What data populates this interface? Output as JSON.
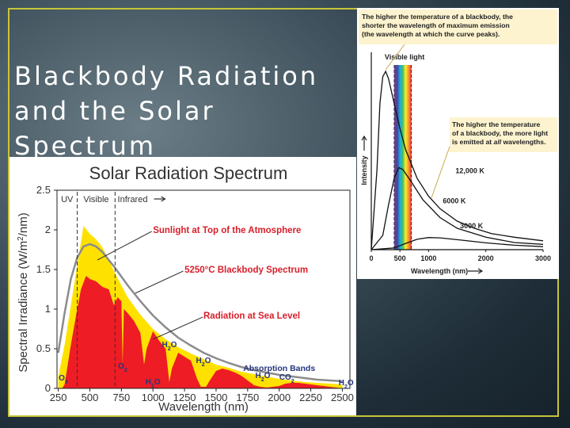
{
  "slide": {
    "title_line1": "Blackbody Radiation",
    "title_line2": "and the Solar Spectrum"
  },
  "solar_chart": {
    "title": "Solar Radiation Spectrum",
    "xlabel": "Wavelength (nm)",
    "ylabel_main": "Spectral Irradiance (W/m",
    "ylabel_sup": "2",
    "ylabel_tail": "/nm)",
    "region_uv": "UV",
    "region_visible": "Visible",
    "region_infrared": "Infrared",
    "label_top_atmos": "Sunlight at Top of the Atmosphere",
    "label_blackbody": "5250°C Blackbody Spectrum",
    "label_sea_level": "Radiation at Sea Level",
    "label_absorption": "Absorption Bands",
    "gases": [
      {
        "text": "O",
        "sub": "3",
        "x": 290,
        "y": 0.1
      },
      {
        "text": "O",
        "sub": "2",
        "x": 760,
        "y": 0.25
      },
      {
        "text": "H",
        "sub": "2",
        "tail": "O",
        "x": 1000,
        "y": 0.05
      },
      {
        "text": "H",
        "sub": "2",
        "tail": "O",
        "x": 1130,
        "y": 0.52
      },
      {
        "text": "H",
        "sub": "2",
        "tail": "O",
        "x": 1400,
        "y": 0.32
      },
      {
        "text": "H",
        "sub": "2",
        "tail": "O",
        "x": 1870,
        "y": 0.13
      },
      {
        "text": "CO",
        "sub": "2",
        "x": 2060,
        "y": 0.11
      },
      {
        "text": "H",
        "sub": "2",
        "tail": "O",
        "x": 2530,
        "y": 0.04
      }
    ],
    "colors": {
      "top": "#ffe100",
      "sea": "#ee1c25",
      "blackbody": "#8c8c8c",
      "label_red": "#d81e2a",
      "label_blue": "#25357c"
    }
  },
  "chart_data": [
    {
      "type": "area",
      "title": "Solar Radiation Spectrum",
      "xlabel": "Wavelength (nm)",
      "ylabel": "Spectral Irradiance (W/m2/nm)",
      "xlim": [
        240,
        2560
      ],
      "ylim": [
        0,
        2.5
      ],
      "x_ticks": [
        250,
        500,
        750,
        1000,
        1250,
        1500,
        1750,
        2000,
        2250,
        2500
      ],
      "y_ticks": [
        0,
        0.5,
        1,
        1.5,
        2,
        2.5
      ],
      "series": [
        {
          "name": "Sunlight at Top of the Atmosphere",
          "x": [
            250,
            300,
            350,
            400,
            450,
            500,
            550,
            600,
            650,
            700,
            750,
            800,
            900,
            1000,
            1100,
            1200,
            1300,
            1400,
            1500,
            1600,
            1700,
            1800,
            1900,
            2000,
            2100,
            2200,
            2300,
            2400,
            2500
          ],
          "y": [
            0.15,
            0.55,
            1.05,
            1.55,
            2.05,
            1.95,
            1.88,
            1.78,
            1.62,
            1.45,
            1.3,
            1.15,
            0.93,
            0.75,
            0.62,
            0.52,
            0.44,
            0.37,
            0.3,
            0.26,
            0.21,
            0.18,
            0.15,
            0.12,
            0.1,
            0.08,
            0.07,
            0.06,
            0.05
          ]
        },
        {
          "name": "5250°C Blackbody Spectrum",
          "x": [
            250,
            300,
            350,
            400,
            450,
            500,
            550,
            600,
            650,
            700,
            750,
            800,
            900,
            1000,
            1100,
            1200,
            1300,
            1400,
            1500,
            1600,
            1700,
            1800,
            1900,
            2000,
            2100,
            2200,
            2300,
            2400,
            2500
          ],
          "y": [
            0.45,
            0.95,
            1.38,
            1.65,
            1.79,
            1.82,
            1.79,
            1.72,
            1.62,
            1.52,
            1.41,
            1.3,
            1.1,
            0.92,
            0.77,
            0.64,
            0.54,
            0.45,
            0.38,
            0.32,
            0.27,
            0.23,
            0.2,
            0.17,
            0.15,
            0.13,
            0.11,
            0.1,
            0.09
          ]
        },
        {
          "name": "Radiation at Sea Level",
          "x": [
            250,
            280,
            300,
            320,
            350,
            400,
            430,
            470,
            500,
            550,
            600,
            650,
            690,
            720,
            750,
            760,
            770,
            800,
            850,
            900,
            930,
            950,
            1000,
            1050,
            1100,
            1130,
            1150,
            1200,
            1250,
            1300,
            1350,
            1380,
            1420,
            1450,
            1500,
            1550,
            1600,
            1650,
            1700,
            1750,
            1800,
            1850,
            1900,
            1950,
            2000,
            2050,
            2100,
            2150,
            2200,
            2250,
            2300,
            2350,
            2400,
            2450,
            2500
          ],
          "y": [
            0,
            0,
            0.05,
            0.25,
            0.55,
            1.0,
            1.25,
            1.42,
            1.38,
            1.35,
            1.28,
            1.25,
            1.05,
            1.15,
            1.1,
            0.3,
            1.0,
            0.95,
            0.85,
            0.7,
            0.3,
            0.5,
            0.72,
            0.6,
            0.5,
            0.08,
            0.25,
            0.45,
            0.4,
            0.35,
            0.12,
            0.02,
            0.02,
            0.1,
            0.22,
            0.25,
            0.23,
            0.2,
            0.16,
            0.1,
            0.04,
            0.02,
            0.01,
            0.02,
            0.03,
            0.06,
            0.07,
            0.07,
            0.06,
            0.05,
            0.04,
            0.03,
            0.02,
            0.01,
            0.0
          ]
        }
      ]
    },
    {
      "type": "line",
      "xlabel": "Wavelength (nm)",
      "ylabel": "Intensity",
      "xlim": [
        0,
        3000
      ],
      "x_ticks": [
        0,
        500,
        1000,
        2000,
        3000
      ],
      "series": [
        {
          "name": "12,000 K",
          "x": [
            0,
            100,
            150,
            200,
            250,
            300,
            400,
            500,
            600,
            800,
            1000,
            1200,
            1500,
            1800,
            2100,
            2500,
            3000
          ],
          "y": [
            0,
            0.45,
            0.82,
            0.97,
            1.0,
            0.96,
            0.82,
            0.68,
            0.56,
            0.4,
            0.3,
            0.23,
            0.16,
            0.12,
            0.09,
            0.07,
            0.05
          ]
        },
        {
          "name": "6000 K",
          "x": [
            0,
            200,
            300,
            400,
            480,
            550,
            700,
            900,
            1200,
            1500,
            2000,
            2500,
            3000
          ],
          "y": [
            0,
            0.08,
            0.25,
            0.4,
            0.46,
            0.45,
            0.38,
            0.28,
            0.18,
            0.12,
            0.07,
            0.04,
            0.03
          ]
        },
        {
          "name": "3000 K",
          "x": [
            0,
            400,
            600,
            800,
            1000,
            1200,
            1500,
            2000,
            2500,
            3000
          ],
          "y": [
            0,
            0.01,
            0.035,
            0.058,
            0.068,
            0.066,
            0.056,
            0.038,
            0.025,
            0.017
          ]
        }
      ]
    }
  ],
  "bb_chart": {
    "note1_line1": "The higher the temperature of a blackbody, the",
    "note1_line2": "shorter the wavelength of maximum emission",
    "note1_line3": "(the wavelength at which the curve peaks).",
    "visible_label": "Visible light",
    "note2_line1": "The higher the temperature",
    "note2_line2": "of a blackbody, the more light",
    "note2_line3a": "is emitted at ",
    "note2_line3b": "all",
    "note2_line3c": " wavelengths.",
    "curve_labels": [
      "12,000 K",
      "6000 K",
      "3000 K"
    ],
    "ylabel": "Intensity",
    "xlabel": "Wavelength (nm)",
    "colors": {
      "note_bg": "#fdf3cf"
    }
  }
}
